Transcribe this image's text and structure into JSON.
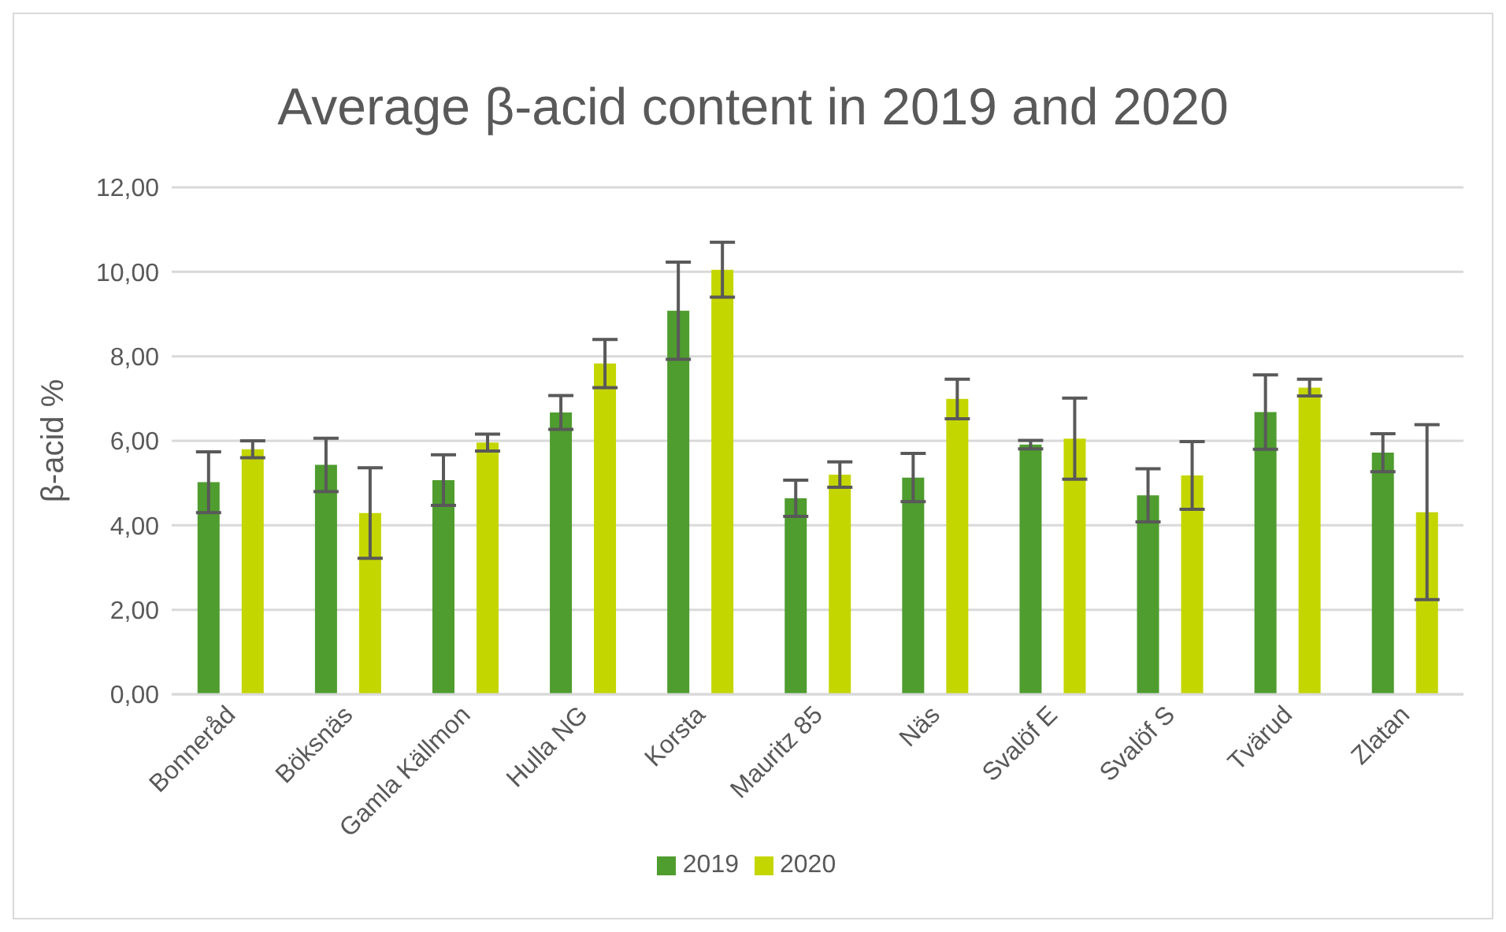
{
  "chart_data": {
    "type": "bar",
    "title": "Average β-acid content in 2019 and 2020",
    "ylabel": "β-acid %",
    "categories": [
      "Bonneråd",
      "Böksnäs",
      "Gamla Källmon",
      "Hulla NG",
      "Korsta",
      "Mauritz 85",
      "Näs",
      "Svalöf E",
      "Svalöf S",
      "Tvärud",
      "Zlatan"
    ],
    "series": [
      {
        "name": "2019",
        "color": "#4f9c2f",
        "values": [
          5.02,
          5.43,
          5.07,
          6.67,
          9.08,
          4.64,
          5.13,
          5.91,
          4.71,
          6.68,
          5.72
        ],
        "errors": [
          0.72,
          0.63,
          0.6,
          0.4,
          1.15,
          0.43,
          0.57,
          0.1,
          0.63,
          0.88,
          0.45
        ]
      },
      {
        "name": "2020",
        "color": "#c4d600",
        "values": [
          5.8,
          4.29,
          5.96,
          7.83,
          10.05,
          5.2,
          6.99,
          6.05,
          5.18,
          7.26,
          4.31
        ],
        "errors": [
          0.2,
          1.07,
          0.2,
          0.57,
          0.65,
          0.3,
          0.47,
          0.96,
          0.8,
          0.2,
          2.07
        ]
      }
    ],
    "ylim": [
      0,
      12
    ],
    "yticks": [
      {
        "value": 0,
        "label": "0,00"
      },
      {
        "value": 2,
        "label": "2,00"
      },
      {
        "value": 4,
        "label": "4,00"
      },
      {
        "value": 6,
        "label": "6,00"
      },
      {
        "value": 8,
        "label": "8,00"
      },
      {
        "value": 10,
        "label": "10,00"
      },
      {
        "value": 12,
        "label": "12,00"
      }
    ],
    "grid": "y",
    "legend": "bottom"
  }
}
